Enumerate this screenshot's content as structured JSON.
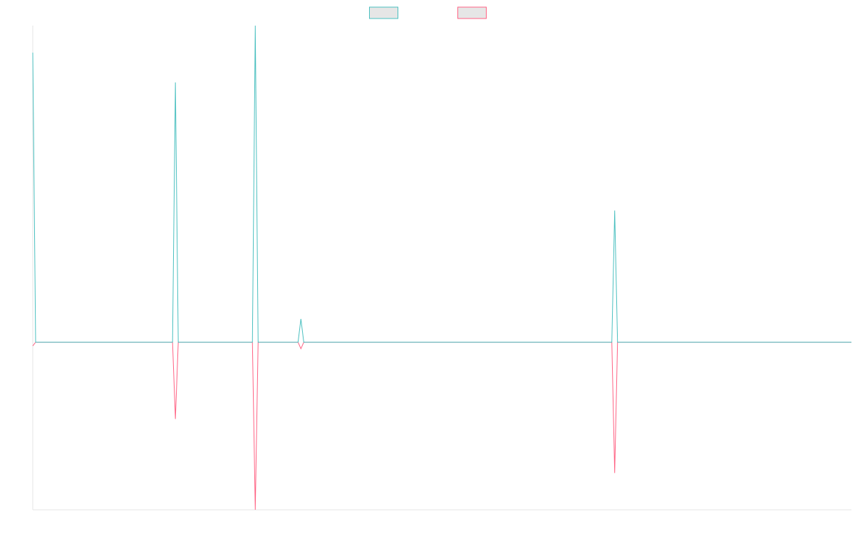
{
  "chart_data": {
    "type": "line",
    "x": [
      0,
      1,
      49,
      50,
      51,
      77,
      78,
      79,
      93,
      94,
      95,
      203,
      204,
      205,
      287
    ],
    "xlim": [
      0,
      287
    ],
    "ylim": [
      -36,
      68
    ],
    "series": [
      {
        "color": "#4bc0c0",
        "values": [
          62.2,
          0,
          0,
          55.8,
          0,
          0,
          68,
          0,
          0,
          5,
          0,
          0,
          28.3,
          0,
          0
        ]
      },
      {
        "color": "#ff6384",
        "values": [
          -0.8,
          0,
          0,
          -16.5,
          0,
          0,
          -36,
          0,
          0,
          -1.4,
          0,
          0,
          -28.1,
          0,
          0
        ]
      }
    ]
  }
}
